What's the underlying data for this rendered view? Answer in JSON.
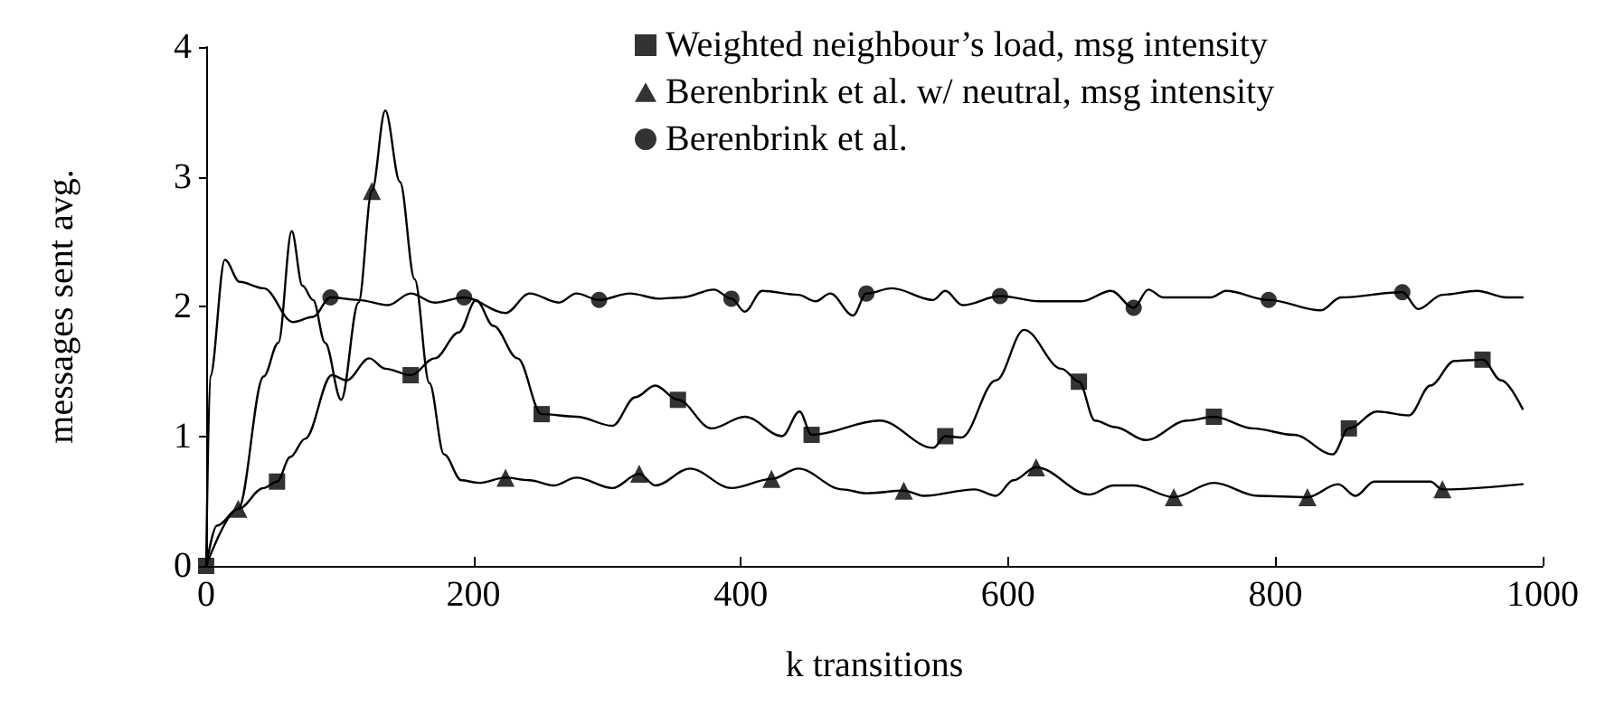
{
  "chart_data": {
    "type": "line",
    "xlabel": "k transitions",
    "ylabel": "messages sent avg.",
    "xlim": [
      0,
      1000
    ],
    "xticks": [
      0,
      200,
      400,
      600,
      800,
      1000
    ],
    "ylim": [
      0,
      4
    ],
    "yticks": [
      0,
      1,
      2,
      3,
      4
    ],
    "grid": false,
    "legend": "top right",
    "line_style": "solid",
    "series": [
      {
        "type": "scatter",
        "marker": "square",
        "name": "Weighted neighbour’s load, msg intensity",
        "color": "#000000",
        "x": [
          0,
          53,
          153,
          251,
          353,
          453,
          553,
          653,
          754,
          855,
          955
        ],
        "values": [
          0,
          0.65,
          1.47,
          1.17,
          1.28,
          1.01,
          1.0,
          1.42,
          1.15,
          1.06,
          1.59
        ]
      },
      {
        "type": "scatter",
        "marker": "triangle",
        "name": "Berenbrink et al. w/ neutral, msg intensity",
        "color": "#000000",
        "x": [
          24,
          124,
          224,
          324,
          423,
          522,
          621,
          724,
          824,
          925
        ],
        "values": [
          0.44,
          2.89,
          0.68,
          0.71,
          0.67,
          0.58,
          0.76,
          0.53,
          0.53,
          0.59
        ]
      },
      {
        "type": "scatter",
        "marker": "circle",
        "name": "Berenbrink et al.",
        "color": "#000000",
        "x": [
          93,
          193,
          294,
          393,
          494,
          594,
          694,
          795,
          895
        ],
        "values": [
          2.07,
          2.07,
          2.05,
          2.06,
          2.1,
          2.08,
          1.99,
          2.05,
          2.11
        ]
      },
      {
        "type": "line",
        "marker": "none",
        "color": "#000000",
        "x": [
          0,
          24,
          43,
          53,
          63,
          74,
          94,
          105,
          122,
          134,
          153,
          171,
          189,
          202,
          215,
          233,
          251,
          277,
          304,
          321,
          336,
          353,
          378,
          403,
          431,
          444,
          453,
          504,
          544,
          553,
          565,
          591,
          612,
          640,
          653,
          665,
          680,
          703,
          734,
          754,
          783,
          814,
          843,
          855,
          876,
          900,
          916,
          934,
          955,
          969,
          985
        ],
        "values": [
          0,
          0.44,
          0.6,
          0.65,
          0.84,
          0.98,
          1.47,
          1.43,
          1.6,
          1.52,
          1.47,
          1.6,
          1.8,
          2.05,
          1.85,
          1.6,
          1.17,
          1.15,
          1.08,
          1.3,
          1.39,
          1.28,
          1.06,
          1.15,
          1.0,
          1.19,
          1.01,
          1.12,
          0.91,
          1.0,
          0.99,
          1.43,
          1.82,
          1.52,
          1.42,
          1.12,
          1.07,
          0.97,
          1.12,
          1.15,
          1.06,
          1.01,
          0.86,
          1.06,
          1.19,
          1.16,
          1.39,
          1.58,
          1.59,
          1.43,
          1.21
        ]
      },
      {
        "type": "line",
        "marker": "none",
        "color": "#000000",
        "x": [
          0,
          8,
          24,
          43,
          54,
          64,
          72,
          80,
          89,
          101,
          114,
          124,
          134,
          145,
          156,
          167,
          178,
          191,
          204,
          224,
          242,
          260,
          277,
          304,
          324,
          336,
          362,
          393,
          423,
          443,
          476,
          494,
          522,
          537,
          575,
          591,
          604,
          621,
          661,
          679,
          694,
          724,
          754,
          787,
          824,
          847,
          860,
          874,
          916,
          925,
          985
        ],
        "values": [
          0,
          0.31,
          0.44,
          1.46,
          1.72,
          2.58,
          2.16,
          2.05,
          1.72,
          1.28,
          2.03,
          2.89,
          3.51,
          2.96,
          2.21,
          1.41,
          0.86,
          0.66,
          0.64,
          0.68,
          0.66,
          0.62,
          0.68,
          0.6,
          0.71,
          0.62,
          0.75,
          0.6,
          0.67,
          0.75,
          0.59,
          0.56,
          0.58,
          0.54,
          0.59,
          0.54,
          0.66,
          0.76,
          0.55,
          0.62,
          0.62,
          0.53,
          0.64,
          0.54,
          0.53,
          0.63,
          0.54,
          0.65,
          0.65,
          0.59,
          0.63
        ]
      },
      {
        "marker": "none",
        "color": "#000000",
        "x": [
          0,
          3,
          14,
          25,
          43,
          65,
          80,
          93,
          114,
          136,
          153,
          171,
          193,
          224,
          242,
          264,
          277,
          294,
          317,
          339,
          356,
          380,
          393,
          403,
          416,
          443,
          456,
          467,
          484,
          494,
          513,
          544,
          553,
          566,
          594,
          624,
          655,
          677,
          694,
          705,
          716,
          752,
          763,
          795,
          834,
          849,
          895,
          907,
          925,
          951,
          973,
          985
        ],
        "values": [
          0,
          1.46,
          2.36,
          2.19,
          2.14,
          1.88,
          1.92,
          2.07,
          2.05,
          2.01,
          2.1,
          2.03,
          2.07,
          1.95,
          2.1,
          2.03,
          2.1,
          2.05,
          2.1,
          2.06,
          2.07,
          2.13,
          2.06,
          1.96,
          2.12,
          2.09,
          2.04,
          2.1,
          1.93,
          2.1,
          2.14,
          2.05,
          2.12,
          2.01,
          2.08,
          2.04,
          2.04,
          2.12,
          1.99,
          2.13,
          2.07,
          2.07,
          2.12,
          2.05,
          1.97,
          2.07,
          2.11,
          1.98,
          2.09,
          2.12,
          2.07,
          2.07
        ]
      }
    ]
  }
}
